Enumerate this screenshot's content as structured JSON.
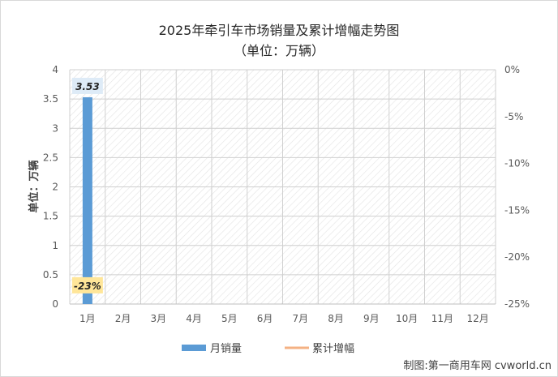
{
  "title": "2025年牵引车市场销量及累计增幅走势图",
  "subtitle": "（单位：万辆）",
  "credit": "制图:第一商用车网 cvworld.cn",
  "colors": {
    "bar": "#5b9bd5",
    "line": "#f4b183",
    "pct_label_bg": "#ffe699",
    "bar_label_bg": "#deebf7"
  },
  "chart_data": {
    "type": "bar",
    "categories": [
      "1月",
      "2月",
      "3月",
      "4月",
      "5月",
      "6月",
      "7月",
      "8月",
      "9月",
      "10月",
      "11月",
      "12月"
    ],
    "series": [
      {
        "name": "月销量",
        "type": "bar",
        "axis": "left",
        "values": [
          3.53,
          null,
          null,
          null,
          null,
          null,
          null,
          null,
          null,
          null,
          null,
          null
        ]
      },
      {
        "name": "累计增幅",
        "type": "line",
        "axis": "right",
        "values": [
          -23,
          null,
          null,
          null,
          null,
          null,
          null,
          null,
          null,
          null,
          null,
          null
        ]
      }
    ],
    "data_labels": {
      "bar": [
        "3.53"
      ],
      "line": [
        "-23%"
      ]
    },
    "ylabel": "单位：万辆",
    "ylim": [
      0,
      4
    ],
    "yticks": [
      "0",
      "0.5",
      "1",
      "1.5",
      "2",
      "2.5",
      "3",
      "3.5",
      "4"
    ],
    "y2lim": [
      -25,
      0
    ],
    "y2ticks": [
      "0%",
      "-5%",
      "-10%",
      "-15%",
      "-20%",
      "-25%"
    ],
    "legend_position": "bottom",
    "grid": true
  }
}
